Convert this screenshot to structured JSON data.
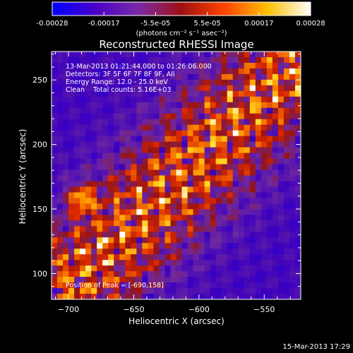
{
  "chart_data": {
    "type": "heatmap",
    "title": "Reconstructed RHESSI Image",
    "xlabel": "Heliocentric X (arcsec)",
    "ylabel": "Heliocentric Y (arcsec)",
    "xlim": [
      -713,
      -522
    ],
    "ylim": [
      80,
      272
    ],
    "x_ticks": [
      -700,
      -650,
      -600,
      -550
    ],
    "y_ticks": [
      100,
      150,
      200,
      250
    ],
    "colorbar": {
      "range": [
        -0.00028,
        0.00028
      ],
      "ticks": [
        "-0.00028",
        "-0.00017",
        "-5.5e-05",
        "5.5e-05",
        "0.00017",
        "0.00028"
      ],
      "unit_label": "(photons cm⁻² s⁻¹ asec⁻²)",
      "palette": [
        "#0000ff",
        "#4a00c8",
        "#7a2aa8",
        "#a01010",
        "#ff4400",
        "#ffc000",
        "#ffffff"
      ]
    },
    "annotations": {
      "time_range": "13-Mar-2013 01:21:44.000 to 01:26:06.000",
      "detectors": "Detectors: 3F 5F 6F 7F 8F 9F, All",
      "energy_range": "Energy Range: 12.0 - 25.0 keV",
      "clean_counts": "Clean    Total counts: 5.16E+03",
      "peak": "Position of Peak = [-690,158]"
    },
    "peak_position": [
      -690,
      158
    ],
    "timestamp": "15-Mar-2013 17:29"
  }
}
